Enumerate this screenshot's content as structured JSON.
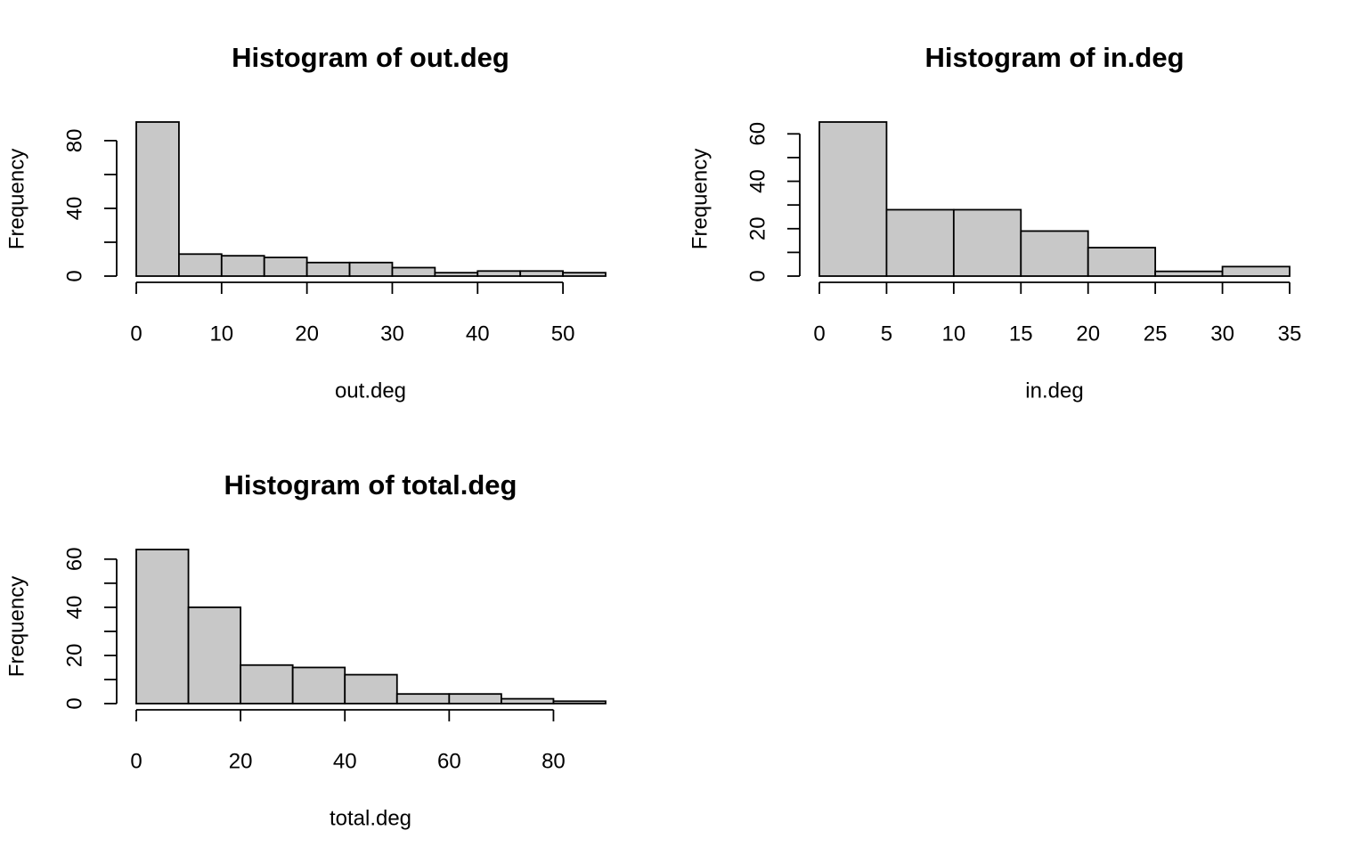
{
  "chart_data": [
    {
      "type": "bar",
      "title": "Histogram of out.deg",
      "xlabel": "out.deg",
      "ylabel": "Frequency",
      "bins": [
        [
          0,
          5
        ],
        [
          5,
          10
        ],
        [
          10,
          15
        ],
        [
          15,
          20
        ],
        [
          20,
          25
        ],
        [
          25,
          30
        ],
        [
          30,
          35
        ],
        [
          35,
          40
        ],
        [
          40,
          45
        ],
        [
          45,
          50
        ],
        [
          50,
          55
        ]
      ],
      "values": [
        91,
        13,
        12,
        11,
        8,
        8,
        5,
        2,
        3,
        3,
        2
      ],
      "xlim": [
        0,
        55
      ],
      "ylim": [
        0,
        91
      ],
      "xticks": [
        0,
        10,
        20,
        30,
        40,
        50
      ],
      "xtick_labels": [
        "0",
        "10",
        "20",
        "30",
        "40",
        "50"
      ],
      "yticks": [
        0,
        20,
        40,
        60,
        80
      ],
      "ytick_labels": [
        "0",
        "40",
        "80"
      ],
      "ytick_label_values": [
        0,
        40,
        80
      ],
      "bar_color": "#c8c8c8",
      "grid": false
    },
    {
      "type": "bar",
      "title": "Histogram of in.deg",
      "xlabel": "in.deg",
      "ylabel": "Frequency",
      "bins": [
        [
          0,
          5
        ],
        [
          5,
          10
        ],
        [
          10,
          15
        ],
        [
          15,
          20
        ],
        [
          20,
          25
        ],
        [
          25,
          30
        ],
        [
          30,
          35
        ]
      ],
      "values": [
        65,
        28,
        28,
        19,
        12,
        2,
        4
      ],
      "xlim": [
        0,
        35
      ],
      "ylim": [
        0,
        65
      ],
      "xticks": [
        0,
        5,
        10,
        15,
        20,
        25,
        30,
        35
      ],
      "xtick_labels": [
        "0",
        "5",
        "10",
        "15",
        "20",
        "25",
        "30",
        "35"
      ],
      "yticks": [
        0,
        10,
        20,
        30,
        40,
        50,
        60
      ],
      "ytick_labels": [
        "0",
        "20",
        "40",
        "60"
      ],
      "ytick_label_values": [
        0,
        20,
        40,
        60
      ],
      "bar_color": "#c8c8c8",
      "grid": false
    },
    {
      "type": "bar",
      "title": "Histogram of total.deg",
      "xlabel": "total.deg",
      "ylabel": "Frequency",
      "bins": [
        [
          0,
          10
        ],
        [
          10,
          20
        ],
        [
          20,
          30
        ],
        [
          30,
          40
        ],
        [
          40,
          50
        ],
        [
          50,
          60
        ],
        [
          60,
          70
        ],
        [
          70,
          80
        ],
        [
          80,
          90
        ]
      ],
      "values": [
        64,
        40,
        16,
        15,
        12,
        4,
        4,
        2,
        1
      ],
      "xlim": [
        0,
        90
      ],
      "ylim": [
        0,
        64
      ],
      "xticks": [
        0,
        20,
        40,
        60,
        80
      ],
      "xtick_labels": [
        "0",
        "20",
        "40",
        "60",
        "80"
      ],
      "yticks": [
        0,
        10,
        20,
        30,
        40,
        50,
        60
      ],
      "ytick_labels": [
        "0",
        "20",
        "40",
        "60"
      ],
      "ytick_label_values": [
        0,
        20,
        40,
        60
      ],
      "bar_color": "#c8c8c8",
      "grid": false
    }
  ]
}
